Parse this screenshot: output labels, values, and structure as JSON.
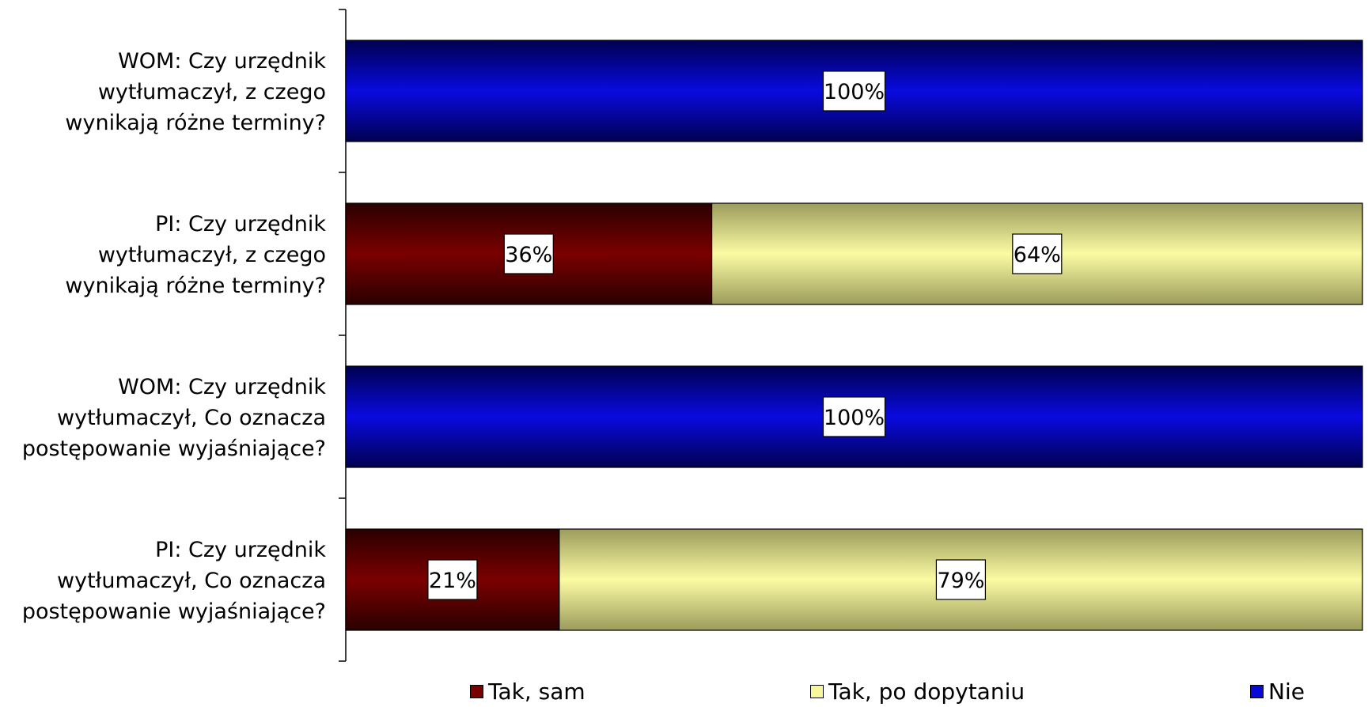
{
  "chart_data": {
    "type": "bar",
    "orientation": "horizontal",
    "stacked": "percent",
    "categories": [
      "WOM: Czy urzędnik wytłumaczył, z czego wynikają różne terminy?",
      "PI: Czy urzędnik wytłumaczył, z czego wynikają różne terminy?",
      "WOM: Czy urzędnik wytłumaczył, Co oznacza postępowanie wyjaśniające?",
      "PI: Czy urzędnik wytłumaczył, Co oznacza postępowanie wyjaśniające?"
    ],
    "category_lines": [
      [
        "WOM: Czy urzędnik",
        "wytłumaczył, z czego",
        "wynikają różne terminy?"
      ],
      [
        "PI: Czy urzędnik",
        "wytłumaczył, z czego",
        "wynikają różne terminy?"
      ],
      [
        "WOM: Czy urzędnik",
        "wytłumaczył, Co oznacza",
        "postępowanie wyjaśniające?"
      ],
      [
        "PI: Czy urzędnik",
        "wytłumaczył, Co oznacza",
        "postępowanie wyjaśniające?"
      ]
    ],
    "series": [
      {
        "name": "Tak, sam",
        "color": "#7a0000",
        "values": [
          0,
          36,
          0,
          21
        ],
        "labels": [
          "",
          "36%",
          "",
          "21%"
        ]
      },
      {
        "name": "Tak, po dopytaniu",
        "color": "#f6f69a",
        "values": [
          0,
          64,
          0,
          79
        ],
        "labels": [
          "",
          "64%",
          "",
          "79%"
        ]
      },
      {
        "name": "Nie",
        "color": "#0a0ad8",
        "values": [
          100,
          0,
          100,
          0
        ],
        "labels": [
          "100%",
          "",
          "100%",
          ""
        ]
      }
    ],
    "xlim": [
      0,
      100
    ],
    "legend_position": "bottom",
    "grid": false
  }
}
